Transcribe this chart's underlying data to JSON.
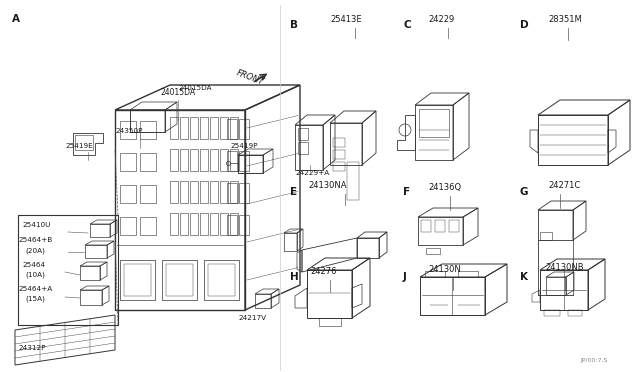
{
  "background_color": "#ffffff",
  "text_color": "#1a1a1a",
  "figure_width": 6.4,
  "figure_height": 3.72,
  "dpi": 100,
  "watermark": "JP/00:7.S",
  "section_letters": [
    "A",
    "B",
    "C",
    "D",
    "E",
    "F",
    "G",
    "H",
    "J",
    "K"
  ],
  "part_numbers": {
    "B": "25413E",
    "C": "24229",
    "D": "28351M",
    "E": "24130NA",
    "F": "24136Q",
    "G": "24271C",
    "H": "24276",
    "J": "24130N",
    "K": "24130NB"
  }
}
